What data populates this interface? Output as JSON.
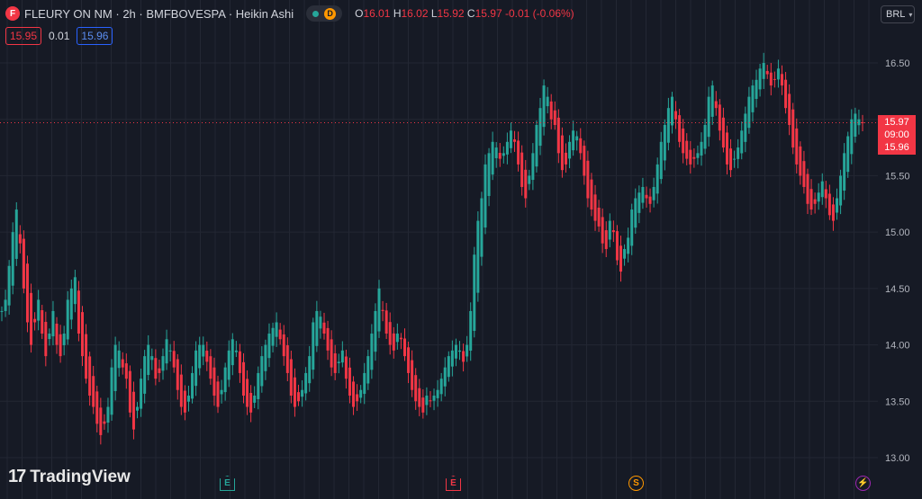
{
  "legend": {
    "symbol_icon": "fleury-logo-icon",
    "symbol_letter": "F",
    "title": "FLEURY ON NM · 2h · BMFBOVESPA · Heikin Ashi",
    "d_badge": "D",
    "o_label": "O",
    "o_value": "16.01",
    "h_label": "H",
    "h_value": "16.02",
    "l_label": "L",
    "l_value": "15.92",
    "c_label": "C",
    "c_value": "15.97",
    "change": "-0.01 (-0.06%)",
    "bid": "15.95",
    "spread": "0.01",
    "ask": "15.96"
  },
  "currency": {
    "label": "BRL",
    "icon": "chevron-down-icon"
  },
  "price_tag": {
    "price": "15.97",
    "time": "09:00",
    "price2": "15.96"
  },
  "brand": {
    "logo_mark": "17",
    "name": "TradingView"
  },
  "events": [
    {
      "letter": "E",
      "color": "#26a69a",
      "icon": "earnings-icon"
    },
    {
      "letter": "E",
      "color": "#f23645",
      "icon": "earnings-icon"
    },
    {
      "letter": "S",
      "color": "#ff9800",
      "icon": "split-icon"
    },
    {
      "letter": "⚡",
      "color": "#9c27b0",
      "icon": "lightning-icon"
    }
  ],
  "colors": {
    "up": "#26a69a",
    "down": "#f23645",
    "grid": "#232733",
    "bg": "#161a25",
    "last_price_line": "#f23645"
  },
  "chart_data": {
    "type": "candlestick",
    "style": "Heikin Ashi",
    "y_ticks": [
      13.0,
      13.5,
      14.0,
      14.5,
      15.0,
      15.5,
      16.0,
      16.5
    ],
    "y_tick_labels": [
      "13.00",
      "13.50",
      "14.00",
      "14.50",
      "15.00",
      "15.50",
      "",
      "16.50"
    ],
    "ylim": [
      12.98,
      16.75
    ],
    "last_price": 15.97,
    "closes": [
      14.3,
      14.4,
      14.7,
      15.0,
      15.2,
      14.9,
      14.5,
      14.2,
      14.0,
      14.2,
      14.4,
      14.1,
      13.9,
      14.1,
      14.3,
      14.0,
      13.9,
      14.1,
      14.4,
      14.5,
      14.6,
      14.1,
      13.9,
      13.7,
      13.55,
      13.45,
      13.3,
      13.2,
      13.3,
      13.45,
      13.8,
      14.0,
      13.95,
      13.8,
      13.7,
      13.4,
      13.25,
      13.45,
      13.7,
      13.9,
      14.0,
      13.9,
      13.7,
      13.75,
      13.9,
      14.05,
      13.95,
      13.8,
      13.6,
      13.45,
      13.4,
      13.55,
      13.75,
      13.95,
      14.0,
      14.0,
      13.85,
      13.7,
      13.55,
      13.45,
      13.6,
      13.8,
      13.95,
      14.05,
      13.95,
      13.75,
      13.55,
      13.45,
      13.4,
      13.55,
      13.75,
      13.9,
      14.0,
      14.1,
      14.15,
      14.2,
      14.05,
      13.9,
      13.75,
      13.55,
      13.45,
      13.5,
      13.6,
      13.75,
      13.9,
      14.2,
      14.3,
      14.25,
      14.1,
      13.95,
      13.8,
      13.75,
      13.85,
      13.95,
      13.7,
      13.55,
      13.45,
      13.5,
      13.6,
      13.75,
      13.9,
      14.1,
      14.3,
      14.5,
      14.3,
      14.1,
      14.0,
      13.95,
      14.1,
      14.05,
      13.9,
      13.75,
      13.6,
      13.5,
      13.45,
      13.4,
      13.55,
      13.5,
      13.55,
      13.6,
      13.7,
      13.8,
      13.9,
      13.95,
      14.0,
      13.95,
      13.85,
      14.0,
      14.3,
      14.8,
      15.1,
      15.3,
      15.6,
      15.7,
      15.8,
      15.75,
      15.65,
      15.7,
      15.8,
      15.9,
      15.8,
      15.6,
      15.4,
      15.3,
      15.5,
      15.7,
      15.95,
      16.1,
      16.3,
      16.2,
      16.0,
      15.95,
      15.7,
      15.55,
      15.6,
      15.8,
      15.9,
      15.85,
      15.7,
      15.5,
      15.3,
      15.2,
      15.1,
      15.05,
      14.9,
      14.85,
      15.1,
      15.0,
      14.75,
      14.65,
      14.85,
      14.95,
      15.2,
      15.3,
      15.35,
      15.4,
      15.3,
      15.25,
      15.4,
      15.6,
      15.8,
      15.95,
      16.1,
      16.2,
      16.0,
      15.8,
      15.7,
      15.65,
      15.6,
      15.65,
      15.7,
      15.8,
      15.95,
      16.2,
      16.3,
      16.1,
      15.9,
      15.75,
      15.6,
      15.55,
      15.65,
      15.75,
      15.9,
      16.05,
      16.2,
      16.3,
      16.35,
      16.45,
      16.5,
      16.4,
      16.3,
      16.35,
      16.45,
      16.3,
      16.1,
      15.95,
      15.75,
      15.6,
      15.5,
      15.4,
      15.25,
      15.2,
      15.25,
      15.35,
      15.45,
      15.3,
      15.15,
      15.1,
      15.3,
      15.5,
      15.7,
      15.85,
      16.0,
      16.05,
      16.0,
      15.97
    ]
  }
}
